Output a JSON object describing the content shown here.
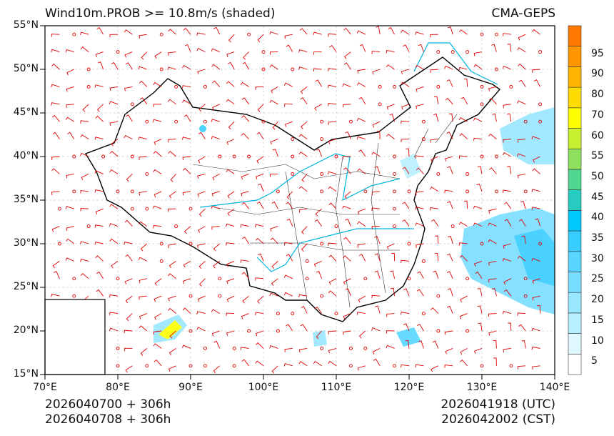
{
  "title_left": "Wind10m.PROB >= 10.8m/s (shaded)",
  "title_right": "CMA-GEPS",
  "lat_labels": [
    "55°N",
    "50°N",
    "45°N",
    "40°N",
    "35°N",
    "30°N",
    "25°N",
    "20°N",
    "15°N"
  ],
  "lon_labels": [
    "70°E",
    "80°E",
    "90°E",
    "100°E",
    "110°E",
    "120°E",
    "130°E",
    "140°E"
  ],
  "footer": {
    "init_utc": "2026040700 + 306h",
    "init_cst": "2026040708 + 306h",
    "valid_utc": "2026041918 (UTC)",
    "valid_cst": "2026042002 (CST)"
  },
  "colorbar": {
    "labels": [
      "5",
      "10",
      "15",
      "20",
      "25",
      "30",
      "35",
      "40",
      "45",
      "50",
      "55",
      "60",
      "70",
      "80",
      "90",
      "95"
    ],
    "colors": [
      "#ffffff",
      "#e0f8ff",
      "#b8efff",
      "#98e6ff",
      "#78deff",
      "#58d6ff",
      "#38cdff",
      "#00c8ff",
      "#28ccc0",
      "#50d890",
      "#90e060",
      "#c8f030",
      "#ffff00",
      "#ffdc00",
      "#ffb400",
      "#ff9600",
      "#ff7800"
    ]
  },
  "colors": {
    "barb": "#e00000",
    "river": "#00b4e0",
    "border": "#000000"
  }
}
